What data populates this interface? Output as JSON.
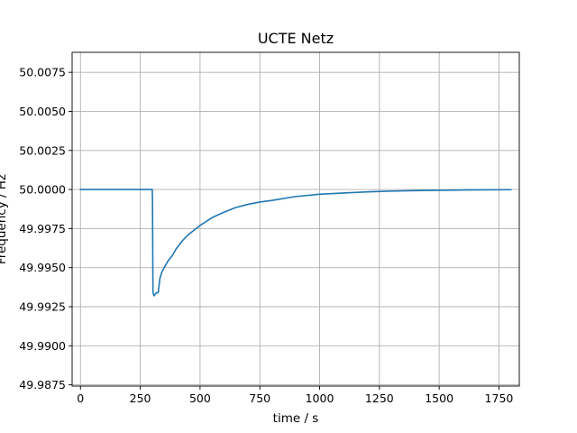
{
  "chart_data": {
    "type": "line",
    "title": "UCTE Netz",
    "xlabel": "time / s",
    "ylabel": "Frequency / Hz",
    "xlim": [
      -35,
      1835
    ],
    "ylim": [
      49.98742,
      50.00878
    ],
    "xticks": [
      0,
      250,
      500,
      750,
      1000,
      1250,
      1500,
      1750
    ],
    "xtick_labels": [
      "0",
      "250",
      "500",
      "750",
      "1000",
      "1250",
      "1500",
      "1750"
    ],
    "yticks": [
      49.9875,
      49.99,
      49.9925,
      49.995,
      49.9975,
      50.0,
      50.0025,
      50.005,
      50.0075
    ],
    "ytick_labels": [
      "49.9875",
      "49.9900",
      "49.9925",
      "49.9950",
      "49.9975",
      "50.0000",
      "50.0025",
      "50.0050",
      "50.0075"
    ],
    "grid": true,
    "series": [
      {
        "color": "#1f77b4",
        "x": [
          0,
          300,
          301,
          302,
          303,
          305,
          308,
          312,
          318,
          325,
          332,
          340,
          350,
          365,
          385,
          400,
          425,
          450,
          500,
          550,
          600,
          650,
          700,
          750,
          800,
          900,
          1000,
          1100,
          1200,
          1300,
          1400,
          1500,
          1600,
          1700,
          1800
        ],
        "y": [
          50.0,
          50.0,
          49.9995,
          49.9965,
          49.9935,
          49.9933,
          49.9932,
          49.9933,
          49.9934,
          49.9934,
          49.9943,
          49.9947,
          49.995,
          49.9954,
          49.9958,
          49.9962,
          49.9967,
          49.9971,
          49.9977,
          49.9982,
          49.99855,
          49.99885,
          49.99905,
          49.9992,
          49.9993,
          49.99955,
          49.9997,
          49.99978,
          49.99985,
          49.9999,
          49.99993,
          49.99995,
          49.99997,
          49.99998,
          49.99999
        ]
      }
    ]
  }
}
